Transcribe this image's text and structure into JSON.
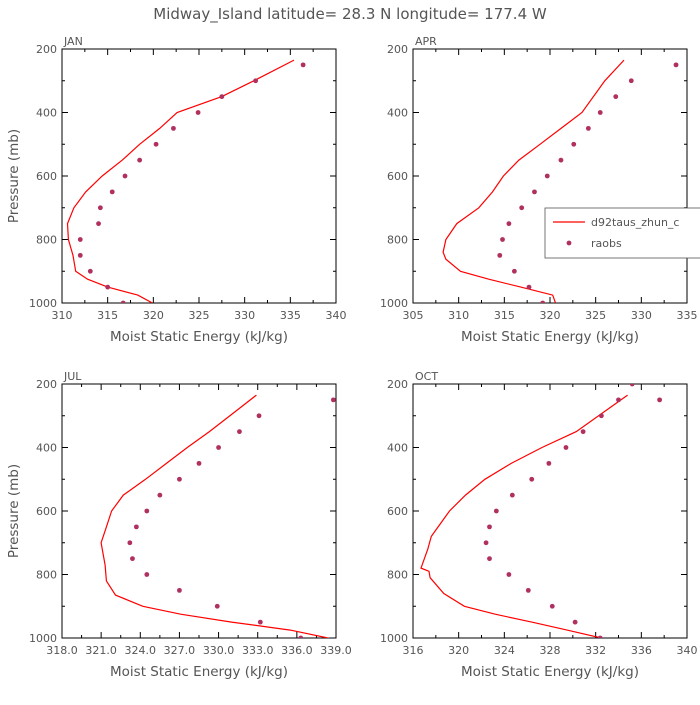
{
  "page_title": "Midway_Island   latitude= 28.3 N longitude= 177.4 W",
  "legend": {
    "model_label": "d92taus_zhun_c",
    "obs_label": "raobs"
  },
  "colors": {
    "model": "#ff0000",
    "obs": "#b03060",
    "axis": "#000000",
    "text": "#555555"
  },
  "chart_data": [
    {
      "type": "line",
      "title": "JAN",
      "xlabel": "Moist Static Energy (kJ/kg)",
      "ylabel": "Pressure (mb)",
      "xlim": [
        310,
        340
      ],
      "ylim": [
        1000,
        200
      ],
      "xticks": [
        310,
        315,
        320,
        325,
        330,
        335,
        340
      ],
      "xticklabels": [
        "310",
        "315",
        "320",
        "325",
        "330",
        "335",
        "340"
      ],
      "yticks": [
        200,
        400,
        600,
        800,
        1000
      ],
      "yticklabels": [
        "200",
        "400",
        "600",
        "800",
        "1000"
      ],
      "series": [
        {
          "name": "d92taus_zhun_c",
          "kind": "line",
          "x": [
            319.9,
            318.3,
            315.0,
            312.8,
            311.5,
            311.2,
            310.7,
            310.6,
            311.3,
            312.6,
            314.4,
            316.6,
            318.5,
            320.7,
            322.6,
            327.5,
            331.0,
            335.4
          ],
          "y": [
            1000,
            975,
            950,
            925,
            900,
            850,
            800,
            750,
            700,
            650,
            600,
            550,
            500,
            450,
            400,
            350,
            300,
            235
          ]
        },
        {
          "name": "raobs",
          "kind": "scatter",
          "x": [
            316.7,
            315.0,
            313.1,
            312.0,
            312.0,
            314.0,
            314.2,
            315.5,
            316.9,
            318.5,
            320.3,
            322.2,
            324.9,
            327.5,
            331.2,
            336.4
          ],
          "y": [
            1000,
            950,
            900,
            850,
            800,
            750,
            700,
            650,
            600,
            550,
            500,
            450,
            400,
            350,
            300,
            250
          ]
        }
      ]
    },
    {
      "type": "line",
      "title": "APR",
      "xlabel": "Moist Static Energy (kJ/kg)",
      "ylabel": "",
      "xlim": [
        305,
        335
      ],
      "ylim": [
        1000,
        200
      ],
      "xticks": [
        305,
        310,
        315,
        320,
        325,
        330,
        335
      ],
      "xticklabels": [
        "305",
        "310",
        "315",
        "320",
        "325",
        "330",
        "335"
      ],
      "yticks": [
        200,
        400,
        600,
        800,
        1000
      ],
      "yticklabels": [
        "200",
        "400",
        "600",
        "800",
        "1000"
      ],
      "series": [
        {
          "name": "d92taus_zhun_c",
          "kind": "line",
          "x": [
            320.6,
            320.3,
            316.8,
            313.3,
            310.2,
            308.6,
            308.3,
            308.6,
            309.8,
            312.2,
            313.7,
            314.9,
            316.6,
            318.9,
            321.2,
            323.5,
            326.0,
            328.1
          ],
          "y": [
            1000,
            975,
            950,
            925,
            900,
            862,
            840,
            800,
            750,
            700,
            650,
            600,
            550,
            500,
            450,
            400,
            300,
            235
          ]
        },
        {
          "name": "raobs",
          "kind": "scatter",
          "x": [
            319.2,
            317.7,
            316.1,
            314.5,
            314.8,
            315.5,
            316.9,
            318.3,
            319.7,
            321.2,
            322.6,
            324.2,
            325.5,
            327.2,
            328.9,
            333.8
          ],
          "y": [
            1000,
            950,
            900,
            850,
            800,
            750,
            700,
            650,
            600,
            550,
            500,
            450,
            400,
            350,
            300,
            250
          ]
        }
      ]
    },
    {
      "type": "line",
      "title": "JUL",
      "xlabel": "Moist Static Energy (kJ/kg)",
      "ylabel": "Pressure (mb)",
      "xlim": [
        318.0,
        339.0
      ],
      "ylim": [
        1000,
        200
      ],
      "xticks": [
        318.0,
        321.0,
        324.0,
        327.0,
        330.0,
        333.0,
        336.0,
        339.0
      ],
      "xticklabels": [
        "318.0",
        "321.0",
        "324.0",
        "327.0",
        "330.0",
        "333.0",
        "336.0",
        "339.0"
      ],
      "yticks": [
        200,
        400,
        600,
        800,
        1000
      ],
      "yticklabels": [
        "200",
        "400",
        "600",
        "800",
        "1000"
      ],
      "series": [
        {
          "name": "d92taus_zhun_c",
          "kind": "line",
          "x": [
            339.0,
            338.4,
            335.5,
            331.0,
            327.1,
            324.2,
            322.1,
            321.4,
            321.3,
            321.0,
            321.4,
            321.8,
            322.7,
            324.4,
            326.0,
            327.6,
            329.3,
            331.5,
            332.9
          ],
          "y": [
            1025,
            1000,
            975,
            950,
            925,
            900,
            865,
            820,
            770,
            700,
            650,
            600,
            550,
            500,
            450,
            400,
            350,
            280,
            235
          ]
        },
        {
          "name": "raobs",
          "kind": "scatter",
          "x": [
            336.3,
            333.2,
            329.9,
            327.0,
            324.5,
            323.4,
            323.2,
            323.7,
            324.5,
            325.5,
            327.0,
            328.5,
            330.0,
            331.6,
            333.1,
            338.8
          ],
          "y": [
            1000,
            950,
            900,
            850,
            800,
            750,
            700,
            650,
            600,
            550,
            500,
            450,
            400,
            350,
            300,
            250
          ]
        }
      ]
    },
    {
      "type": "line",
      "title": "OCT",
      "xlabel": "Moist Static Energy (kJ/kg)",
      "ylabel": "",
      "xlim": [
        316,
        340
      ],
      "ylim": [
        1000,
        200
      ],
      "xticks": [
        316,
        320,
        324,
        328,
        332,
        336,
        340
      ],
      "xticklabels": [
        "316",
        "320",
        "324",
        "328",
        "332",
        "336",
        "340"
      ],
      "yticks": [
        200,
        400,
        600,
        800,
        1000
      ],
      "yticklabels": [
        "200",
        "400",
        "600",
        "800",
        "1000"
      ],
      "series": [
        {
          "name": "d92taus_zhun_c",
          "kind": "line",
          "x": [
            334.2,
            332.5,
            329.5,
            326.4,
            323.2,
            320.5,
            318.7,
            317.5,
            317.4,
            316.7,
            317.0,
            317.3,
            317.6,
            318.2,
            319.2,
            320.6,
            322.3,
            324.6,
            327.3,
            330.3,
            334.8
          ],
          "y": [
            1020,
            1000,
            975,
            950,
            925,
            900,
            860,
            810,
            790,
            780,
            750,
            720,
            680,
            650,
            600,
            550,
            500,
            450,
            400,
            350,
            235
          ]
        },
        {
          "name": "raobs",
          "kind": "scatter",
          "x": [
            332.4,
            330.2,
            328.2,
            326.1,
            324.4,
            322.7,
            322.4,
            322.7,
            323.3,
            324.7,
            326.4,
            327.9,
            329.4,
            330.9,
            332.5,
            334.0,
            335.2,
            337.6
          ],
          "y": [
            1000,
            950,
            900,
            850,
            800,
            750,
            700,
            650,
            600,
            550,
            500,
            450,
            400,
            350,
            300,
            250,
            200,
            250
          ]
        }
      ]
    }
  ]
}
